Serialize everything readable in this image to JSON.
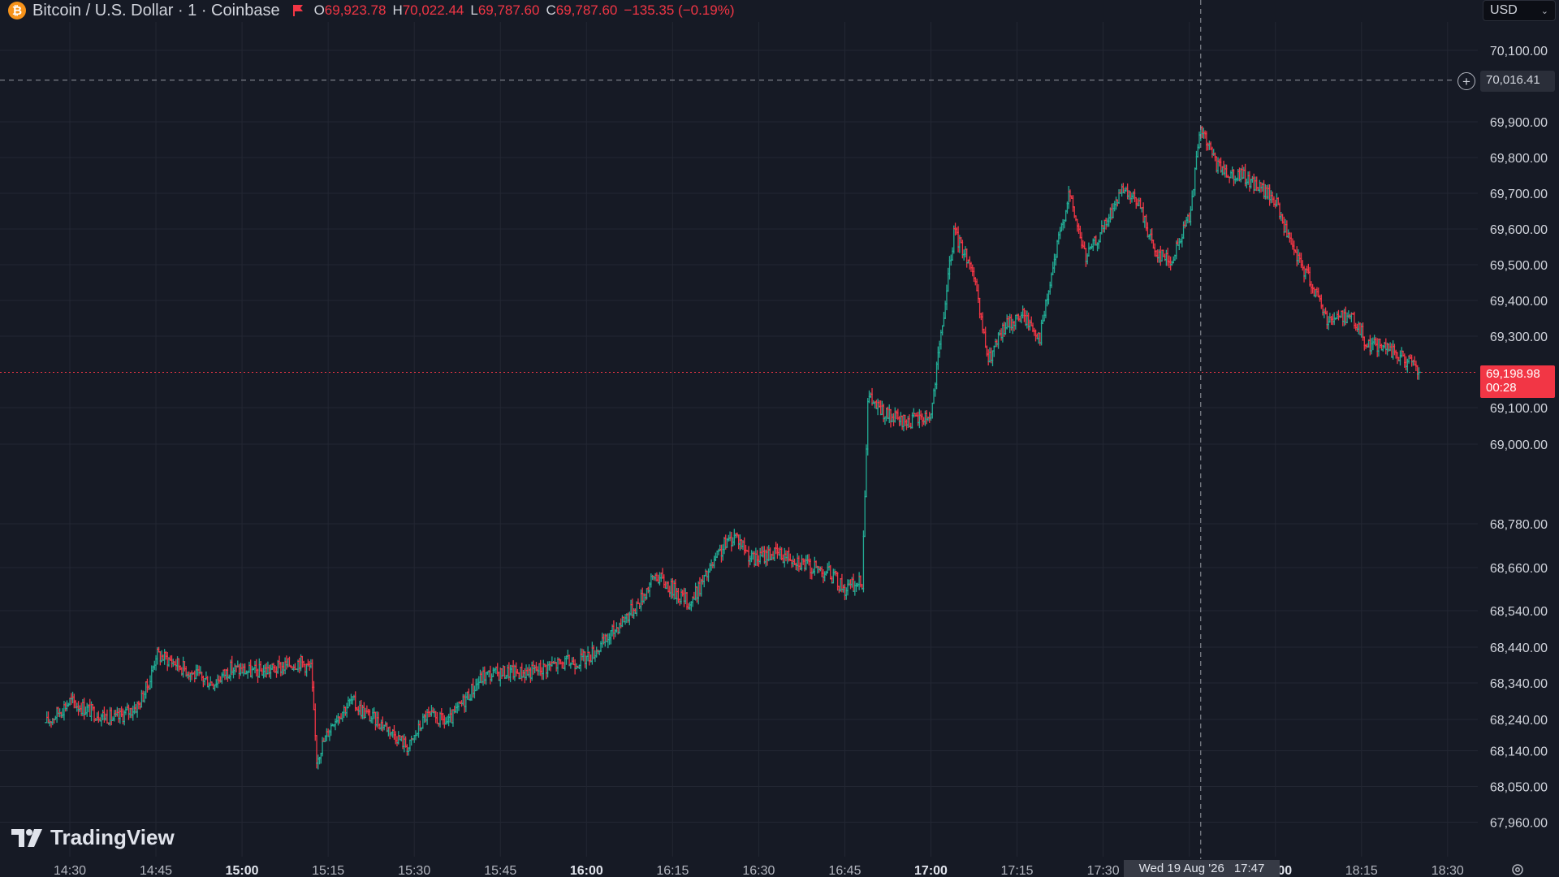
{
  "header": {
    "symbol_icon": "bitcoin-icon",
    "symbol_icon_glyph": "₿",
    "title": "Bitcoin / U.S. Dollar · 1 · Coinbase",
    "flag_icon": "flag-icon",
    "ohlc": [
      {
        "key": "O",
        "value": "69,923.78"
      },
      {
        "key": "H",
        "value": "70,022.44"
      },
      {
        "key": "L",
        "value": "69,787.60"
      },
      {
        "key": "C",
        "value": "69,787.60"
      }
    ],
    "change": "−135.35 (−0.19%)"
  },
  "currency_select": {
    "value": "USD",
    "icon": "chevron-down-icon"
  },
  "crosshair": {
    "price_label": "70,016.41",
    "price": 70016.41,
    "date_label": "Wed 19 Aug '26",
    "time_label": "17:47",
    "time": "17:47"
  },
  "last_price": {
    "value_label": "69,198.98",
    "value": 69198.98,
    "countdown": "00:28"
  },
  "colors": {
    "background": "#161a25",
    "up": "#22ab94",
    "down": "#f23645",
    "grid": "#232733",
    "text": "#d1d4dc"
  },
  "brand": {
    "logo_text": "TradingView",
    "logo_icon": "tradingview-logo-icon"
  },
  "settings_icon": "gear-icon",
  "chart_data": {
    "type": "line",
    "description_series": "OHLC bars, 1-minute interval",
    "y_ticks": [
      "67,960.00",
      "68,050.00",
      "68,140.00",
      "68,240.00",
      "68,340.00",
      "68,440.00",
      "68,540.00",
      "68,660.00",
      "68,780.00",
      "69,000.00",
      "69,100.00",
      "69,300.00",
      "69,400.00",
      "69,500.00",
      "69,600.00",
      "69,700.00",
      "69,800.00",
      "69,900.00",
      "70,100.00"
    ],
    "x_ticks": [
      {
        "label": "14:30",
        "bold": false
      },
      {
        "label": "14:45",
        "bold": false
      },
      {
        "label": "15:00",
        "bold": true
      },
      {
        "label": "15:15",
        "bold": false
      },
      {
        "label": "15:30",
        "bold": false
      },
      {
        "label": "15:45",
        "bold": false
      },
      {
        "label": "16:00",
        "bold": true
      },
      {
        "label": "16:15",
        "bold": false
      },
      {
        "label": "16:30",
        "bold": false
      },
      {
        "label": "16:45",
        "bold": false
      },
      {
        "label": "17:00",
        "bold": true
      },
      {
        "label": "17:15",
        "bold": false
      },
      {
        "label": "17:30",
        "bold": false
      },
      {
        "label": "18:00",
        "bold": true
      },
      {
        "label": "18:15",
        "bold": false
      },
      {
        "label": "18:30",
        "bold": false
      }
    ],
    "x_range": [
      "14:26",
      "18:43"
    ],
    "y_range": [
      67920,
      70160
    ],
    "grid": true,
    "anchors": [
      [
        "14:26",
        68230
      ],
      [
        "14:30",
        68290
      ],
      [
        "14:34",
        68260
      ],
      [
        "14:38",
        68240
      ],
      [
        "14:42",
        68280
      ],
      [
        "14:44",
        68350
      ],
      [
        "14:45",
        68420
      ],
      [
        "14:48",
        68400
      ],
      [
        "14:52",
        68360
      ],
      [
        "14:55",
        68340
      ],
      [
        "14:58",
        68380
      ],
      [
        "15:02",
        68370
      ],
      [
        "15:06",
        68380
      ],
      [
        "15:10",
        68400
      ],
      [
        "15:12",
        68380
      ],
      [
        "15:13",
        68120
      ],
      [
        "15:16",
        68240
      ],
      [
        "15:19",
        68290
      ],
      [
        "15:22",
        68250
      ],
      [
        "15:25",
        68220
      ],
      [
        "15:29",
        68150
      ],
      [
        "15:32",
        68250
      ],
      [
        "15:36",
        68230
      ],
      [
        "15:39",
        68300
      ],
      [
        "15:42",
        68360
      ],
      [
        "15:46",
        68370
      ],
      [
        "15:50",
        68370
      ],
      [
        "15:54",
        68390
      ],
      [
        "15:58",
        68400
      ],
      [
        "16:00",
        68410
      ],
      [
        "16:03",
        68450
      ],
      [
        "16:06",
        68510
      ],
      [
        "16:09",
        68560
      ],
      [
        "16:12",
        68640
      ],
      [
        "16:15",
        68600
      ],
      [
        "16:18",
        68560
      ],
      [
        "16:21",
        68640
      ],
      [
        "16:24",
        68720
      ],
      [
        "16:26",
        68750
      ],
      [
        "16:29",
        68680
      ],
      [
        "16:32",
        68700
      ],
      [
        "16:36",
        68690
      ],
      [
        "16:39",
        68660
      ],
      [
        "16:42",
        68650
      ],
      [
        "16:45",
        68600
      ],
      [
        "16:48",
        68620
      ],
      [
        "16:49",
        69130
      ],
      [
        "16:52",
        69080
      ],
      [
        "16:55",
        69060
      ],
      [
        "16:58",
        69070
      ],
      [
        "17:00",
        69080
      ],
      [
        "17:02",
        69330
      ],
      [
        "17:04",
        69590
      ],
      [
        "17:07",
        69500
      ],
      [
        "17:10",
        69230
      ],
      [
        "17:13",
        69330
      ],
      [
        "17:16",
        69360
      ],
      [
        "17:19",
        69300
      ],
      [
        "17:22",
        69550
      ],
      [
        "17:24",
        69700
      ],
      [
        "17:27",
        69520
      ],
      [
        "17:30",
        69600
      ],
      [
        "17:33",
        69700
      ],
      [
        "17:36",
        69680
      ],
      [
        "17:39",
        69540
      ],
      [
        "17:42",
        69510
      ],
      [
        "17:45",
        69640
      ],
      [
        "17:47",
        69880
      ],
      [
        "17:50",
        69770
      ],
      [
        "17:54",
        69750
      ],
      [
        "17:57",
        69720
      ],
      [
        "18:00",
        69680
      ],
      [
        "18:03",
        69540
      ],
      [
        "18:06",
        69460
      ],
      [
        "18:09",
        69350
      ],
      [
        "18:13",
        69360
      ],
      [
        "18:16",
        69280
      ],
      [
        "18:19",
        69270
      ],
      [
        "18:23",
        69230
      ],
      [
        "18:25",
        69199
      ]
    ],
    "last_value": 69198.98
  }
}
